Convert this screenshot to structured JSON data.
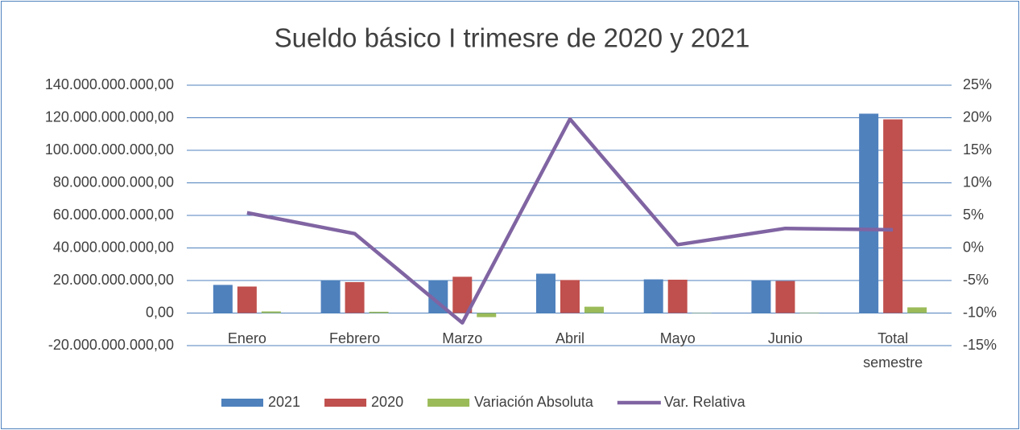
{
  "chart_data": {
    "type": "bar-line",
    "title": "Sueldo básico I trimesre de 2020 y 2021",
    "categories": [
      "Enero",
      "Febrero",
      "Marzo",
      "Abril",
      "Mayo",
      "Junio",
      "Total semestre"
    ],
    "series": [
      {
        "name": "2021",
        "type": "bar",
        "color": "#4f81bd",
        "values": [
          17300000000,
          19800000000,
          19800000000,
          24200000000,
          20700000000,
          20000000000,
          122500000000
        ]
      },
      {
        "name": "2020",
        "type": "bar",
        "color": "#c0504d",
        "values": [
          16300000000,
          19000000000,
          22300000000,
          20300000000,
          20500000000,
          19700000000,
          119000000000
        ]
      },
      {
        "name": "Variación Absoluta",
        "type": "bar",
        "color": "#9bbb59",
        "values": [
          1000000000,
          800000000,
          -2500000000,
          3900000000,
          200000000,
          300000000,
          3500000000
        ]
      },
      {
        "name": "Var. Relativa",
        "type": "line",
        "axis": "y2",
        "color": "#8064a2",
        "values": [
          5.4,
          2.2,
          -11.5,
          19.8,
          0.5,
          3.0,
          2.8
        ]
      }
    ],
    "ylim": [
      -20000000000,
      140000000000
    ],
    "yticks": [
      {
        "value": -20000000000,
        "label": "-20.000.000.000,00"
      },
      {
        "value": 0,
        "label": "0,00"
      },
      {
        "value": 20000000000,
        "label": "20.000.000.000,00"
      },
      {
        "value": 40000000000,
        "label": "40.000.000.000,00"
      },
      {
        "value": 60000000000,
        "label": "60.000.000.000,00"
      },
      {
        "value": 80000000000,
        "label": "80.000.000.000,00"
      },
      {
        "value": 100000000000,
        "label": "100.000.000.000,00"
      },
      {
        "value": 120000000000,
        "label": "120.000.000.000,00"
      },
      {
        "value": 140000000000,
        "label": "140.000.000.000,00"
      }
    ],
    "y2lim": [
      -15,
      25
    ],
    "y2ticks": [
      {
        "value": -15,
        "label": "-15%"
      },
      {
        "value": -10,
        "label": "-10%"
      },
      {
        "value": -5,
        "label": "-5%"
      },
      {
        "value": 0,
        "label": "0%"
      },
      {
        "value": 5,
        "label": "5%"
      },
      {
        "value": 10,
        "label": "10%"
      },
      {
        "value": 15,
        "label": "15%"
      },
      {
        "value": 20,
        "label": "20%"
      },
      {
        "value": 25,
        "label": "25%"
      }
    ],
    "grid": true,
    "legend": "bottom"
  }
}
